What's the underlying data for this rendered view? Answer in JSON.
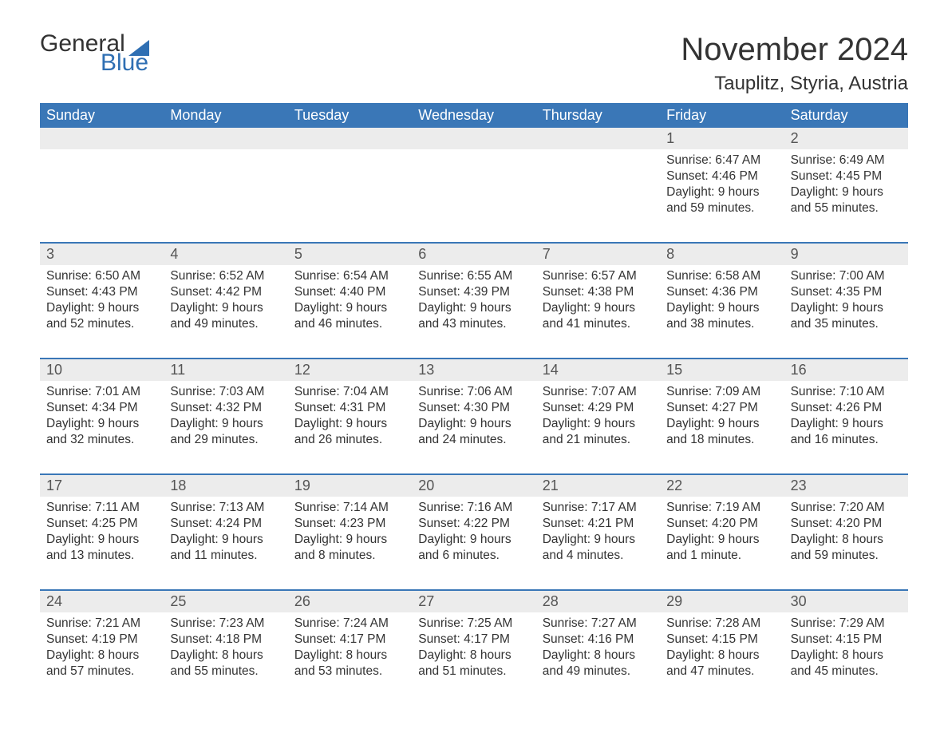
{
  "logo": {
    "textA": "General",
    "textB": "Blue",
    "triColor": "#2f6fb3",
    "textAColor": "#333333",
    "textBColor": "#2f6fb3"
  },
  "title": "November 2024",
  "location": "Tauplitz, Styria, Austria",
  "colors": {
    "headerBg": "#3a77b7",
    "headerText": "#ffffff",
    "dayStripBg": "#ececec",
    "ruleColor": "#3a77b7",
    "bodyText": "#333333",
    "background": "#ffffff"
  },
  "dayNames": [
    "Sunday",
    "Monday",
    "Tuesday",
    "Wednesday",
    "Thursday",
    "Friday",
    "Saturday"
  ],
  "weeks": [
    {
      "nums": [
        "",
        "",
        "",
        "",
        "",
        "1",
        "2"
      ],
      "cells": [
        {
          "sunrise": "",
          "sunset": "",
          "daylight1": "",
          "daylight2": ""
        },
        {
          "sunrise": "",
          "sunset": "",
          "daylight1": "",
          "daylight2": ""
        },
        {
          "sunrise": "",
          "sunset": "",
          "daylight1": "",
          "daylight2": ""
        },
        {
          "sunrise": "",
          "sunset": "",
          "daylight1": "",
          "daylight2": ""
        },
        {
          "sunrise": "",
          "sunset": "",
          "daylight1": "",
          "daylight2": ""
        },
        {
          "sunrise": "Sunrise: 6:47 AM",
          "sunset": "Sunset: 4:46 PM",
          "daylight1": "Daylight: 9 hours",
          "daylight2": "and 59 minutes."
        },
        {
          "sunrise": "Sunrise: 6:49 AM",
          "sunset": "Sunset: 4:45 PM",
          "daylight1": "Daylight: 9 hours",
          "daylight2": "and 55 minutes."
        }
      ]
    },
    {
      "nums": [
        "3",
        "4",
        "5",
        "6",
        "7",
        "8",
        "9"
      ],
      "cells": [
        {
          "sunrise": "Sunrise: 6:50 AM",
          "sunset": "Sunset: 4:43 PM",
          "daylight1": "Daylight: 9 hours",
          "daylight2": "and 52 minutes."
        },
        {
          "sunrise": "Sunrise: 6:52 AM",
          "sunset": "Sunset: 4:42 PM",
          "daylight1": "Daylight: 9 hours",
          "daylight2": "and 49 minutes."
        },
        {
          "sunrise": "Sunrise: 6:54 AM",
          "sunset": "Sunset: 4:40 PM",
          "daylight1": "Daylight: 9 hours",
          "daylight2": "and 46 minutes."
        },
        {
          "sunrise": "Sunrise: 6:55 AM",
          "sunset": "Sunset: 4:39 PM",
          "daylight1": "Daylight: 9 hours",
          "daylight2": "and 43 minutes."
        },
        {
          "sunrise": "Sunrise: 6:57 AM",
          "sunset": "Sunset: 4:38 PM",
          "daylight1": "Daylight: 9 hours",
          "daylight2": "and 41 minutes."
        },
        {
          "sunrise": "Sunrise: 6:58 AM",
          "sunset": "Sunset: 4:36 PM",
          "daylight1": "Daylight: 9 hours",
          "daylight2": "and 38 minutes."
        },
        {
          "sunrise": "Sunrise: 7:00 AM",
          "sunset": "Sunset: 4:35 PM",
          "daylight1": "Daylight: 9 hours",
          "daylight2": "and 35 minutes."
        }
      ]
    },
    {
      "nums": [
        "10",
        "11",
        "12",
        "13",
        "14",
        "15",
        "16"
      ],
      "cells": [
        {
          "sunrise": "Sunrise: 7:01 AM",
          "sunset": "Sunset: 4:34 PM",
          "daylight1": "Daylight: 9 hours",
          "daylight2": "and 32 minutes."
        },
        {
          "sunrise": "Sunrise: 7:03 AM",
          "sunset": "Sunset: 4:32 PM",
          "daylight1": "Daylight: 9 hours",
          "daylight2": "and 29 minutes."
        },
        {
          "sunrise": "Sunrise: 7:04 AM",
          "sunset": "Sunset: 4:31 PM",
          "daylight1": "Daylight: 9 hours",
          "daylight2": "and 26 minutes."
        },
        {
          "sunrise": "Sunrise: 7:06 AM",
          "sunset": "Sunset: 4:30 PM",
          "daylight1": "Daylight: 9 hours",
          "daylight2": "and 24 minutes."
        },
        {
          "sunrise": "Sunrise: 7:07 AM",
          "sunset": "Sunset: 4:29 PM",
          "daylight1": "Daylight: 9 hours",
          "daylight2": "and 21 minutes."
        },
        {
          "sunrise": "Sunrise: 7:09 AM",
          "sunset": "Sunset: 4:27 PM",
          "daylight1": "Daylight: 9 hours",
          "daylight2": "and 18 minutes."
        },
        {
          "sunrise": "Sunrise: 7:10 AM",
          "sunset": "Sunset: 4:26 PM",
          "daylight1": "Daylight: 9 hours",
          "daylight2": "and 16 minutes."
        }
      ]
    },
    {
      "nums": [
        "17",
        "18",
        "19",
        "20",
        "21",
        "22",
        "23"
      ],
      "cells": [
        {
          "sunrise": "Sunrise: 7:11 AM",
          "sunset": "Sunset: 4:25 PM",
          "daylight1": "Daylight: 9 hours",
          "daylight2": "and 13 minutes."
        },
        {
          "sunrise": "Sunrise: 7:13 AM",
          "sunset": "Sunset: 4:24 PM",
          "daylight1": "Daylight: 9 hours",
          "daylight2": "and 11 minutes."
        },
        {
          "sunrise": "Sunrise: 7:14 AM",
          "sunset": "Sunset: 4:23 PM",
          "daylight1": "Daylight: 9 hours",
          "daylight2": "and 8 minutes."
        },
        {
          "sunrise": "Sunrise: 7:16 AM",
          "sunset": "Sunset: 4:22 PM",
          "daylight1": "Daylight: 9 hours",
          "daylight2": "and 6 minutes."
        },
        {
          "sunrise": "Sunrise: 7:17 AM",
          "sunset": "Sunset: 4:21 PM",
          "daylight1": "Daylight: 9 hours",
          "daylight2": "and 4 minutes."
        },
        {
          "sunrise": "Sunrise: 7:19 AM",
          "sunset": "Sunset: 4:20 PM",
          "daylight1": "Daylight: 9 hours",
          "daylight2": "and 1 minute."
        },
        {
          "sunrise": "Sunrise: 7:20 AM",
          "sunset": "Sunset: 4:20 PM",
          "daylight1": "Daylight: 8 hours",
          "daylight2": "and 59 minutes."
        }
      ]
    },
    {
      "nums": [
        "24",
        "25",
        "26",
        "27",
        "28",
        "29",
        "30"
      ],
      "cells": [
        {
          "sunrise": "Sunrise: 7:21 AM",
          "sunset": "Sunset: 4:19 PM",
          "daylight1": "Daylight: 8 hours",
          "daylight2": "and 57 minutes."
        },
        {
          "sunrise": "Sunrise: 7:23 AM",
          "sunset": "Sunset: 4:18 PM",
          "daylight1": "Daylight: 8 hours",
          "daylight2": "and 55 minutes."
        },
        {
          "sunrise": "Sunrise: 7:24 AM",
          "sunset": "Sunset: 4:17 PM",
          "daylight1": "Daylight: 8 hours",
          "daylight2": "and 53 minutes."
        },
        {
          "sunrise": "Sunrise: 7:25 AM",
          "sunset": "Sunset: 4:17 PM",
          "daylight1": "Daylight: 8 hours",
          "daylight2": "and 51 minutes."
        },
        {
          "sunrise": "Sunrise: 7:27 AM",
          "sunset": "Sunset: 4:16 PM",
          "daylight1": "Daylight: 8 hours",
          "daylight2": "and 49 minutes."
        },
        {
          "sunrise": "Sunrise: 7:28 AM",
          "sunset": "Sunset: 4:15 PM",
          "daylight1": "Daylight: 8 hours",
          "daylight2": "and 47 minutes."
        },
        {
          "sunrise": "Sunrise: 7:29 AM",
          "sunset": "Sunset: 4:15 PM",
          "daylight1": "Daylight: 8 hours",
          "daylight2": "and 45 minutes."
        }
      ]
    }
  ]
}
